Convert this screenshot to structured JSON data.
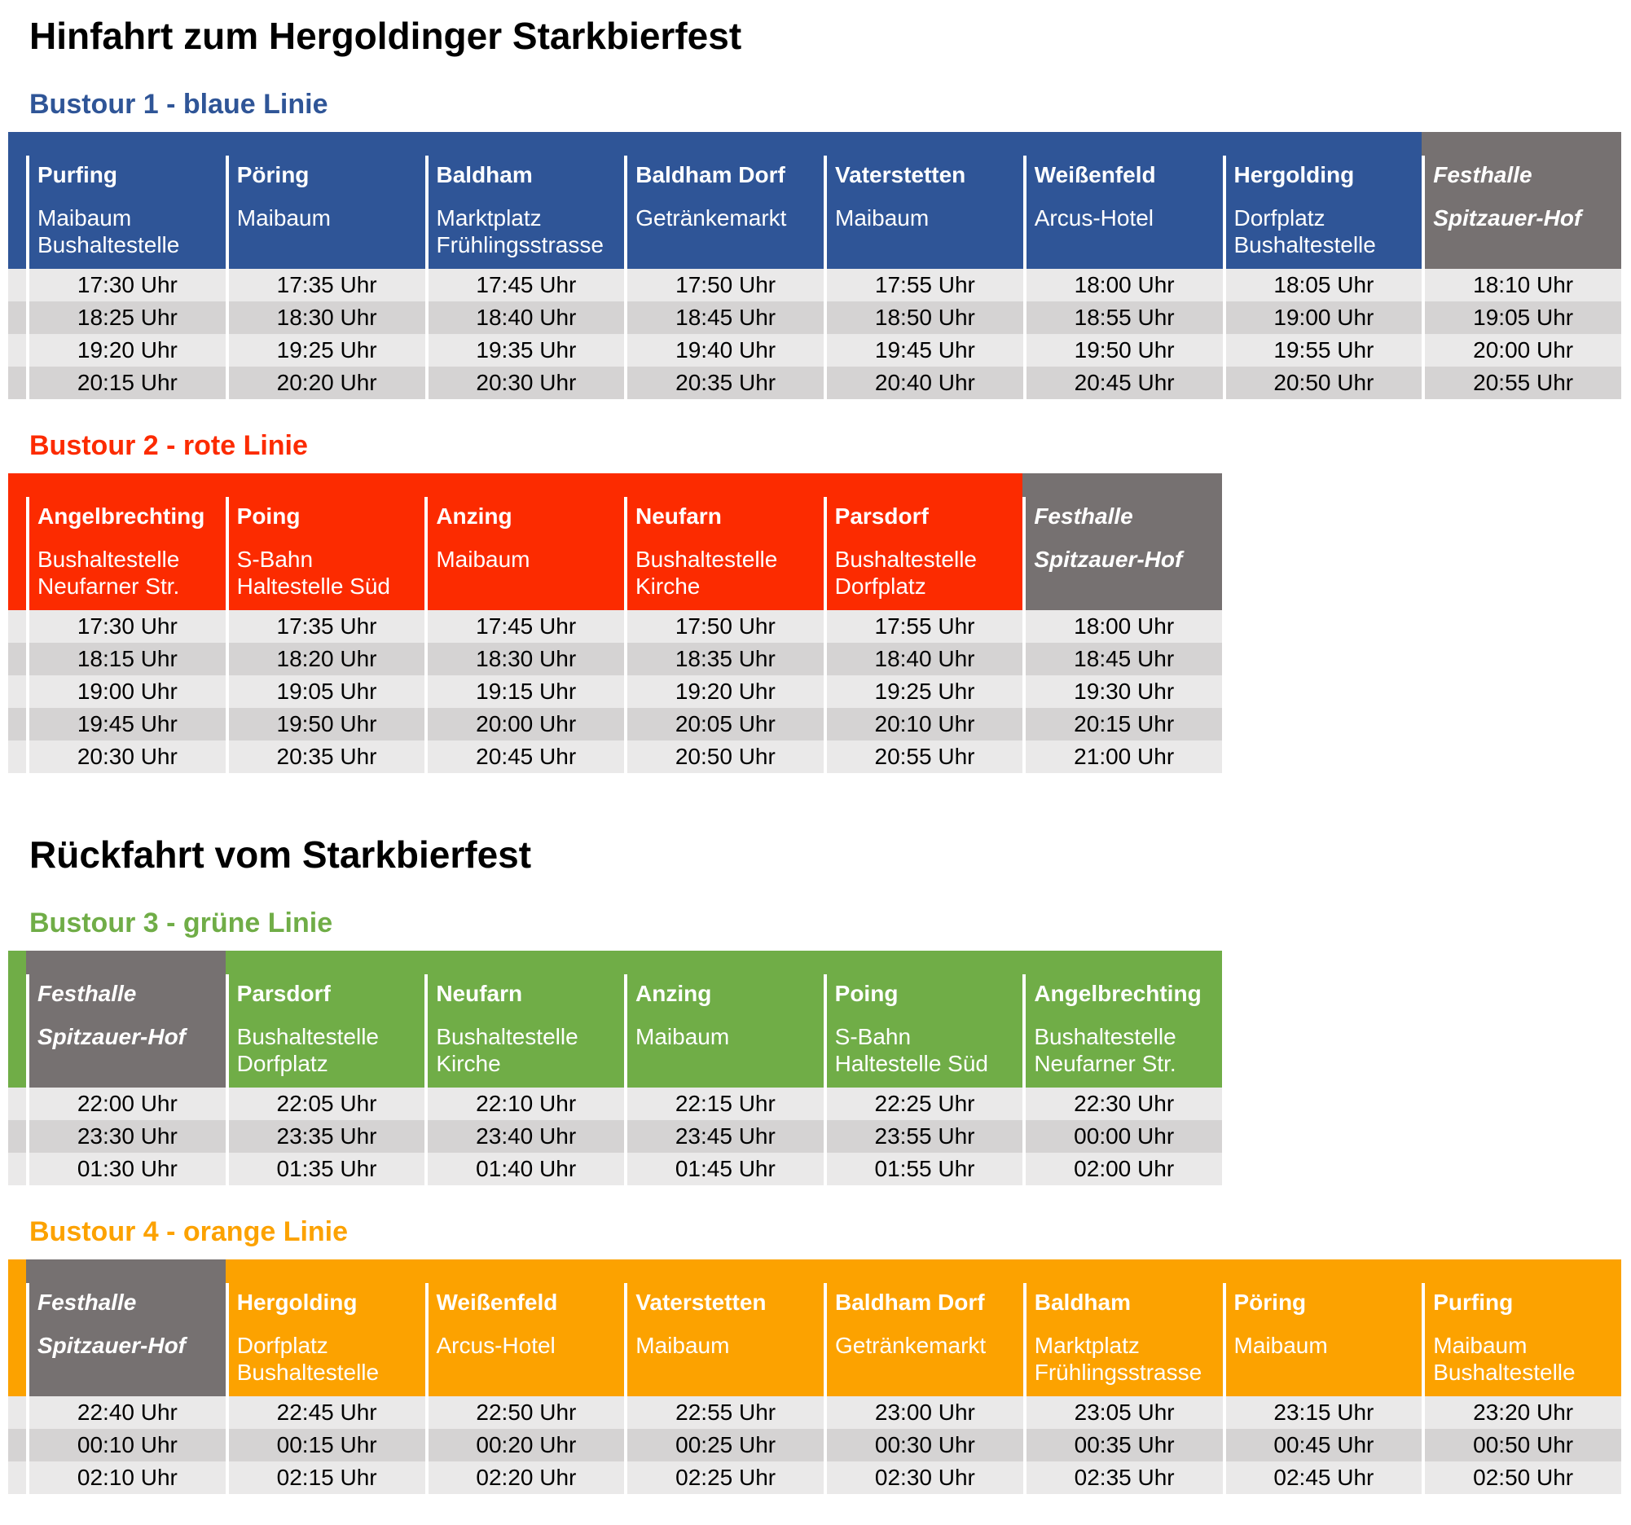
{
  "headings": {
    "outbound": "Hinfahrt zum Hergoldinger Starkbierfest",
    "return": "Rückfahrt vom Starkbierfest"
  },
  "colors": {
    "blue": "#2F5597",
    "red": "#FC2B00",
    "green": "#70AD47",
    "orange": "#FCA200",
    "festhalle_gray": "#767171",
    "row_light": "#EAE9E9",
    "row_dark": "#D5D3D3"
  },
  "tours": [
    {
      "title": "Bustour 1 - blaue Linie",
      "color_key": "blue",
      "section": "outbound",
      "wide": true,
      "stops": [
        {
          "name": "Purfing",
          "detail": [
            "Maibaum",
            "Bushaltestelle"
          ],
          "highlight": false
        },
        {
          "name": "Pöring",
          "detail": [
            "Maibaum"
          ],
          "highlight": false
        },
        {
          "name": "Baldham",
          "detail": [
            "Marktplatz",
            "Frühlingsstrasse"
          ],
          "highlight": false
        },
        {
          "name": "Baldham Dorf",
          "detail": [
            "Getränkemarkt"
          ],
          "highlight": false
        },
        {
          "name": "Vaterstetten",
          "detail": [
            "Maibaum"
          ],
          "highlight": false
        },
        {
          "name": "Weißenfeld",
          "detail": [
            "Arcus-Hotel"
          ],
          "highlight": false
        },
        {
          "name": "Hergolding",
          "detail": [
            "Dorfplatz",
            "Bushaltestelle"
          ],
          "highlight": false
        },
        {
          "name": "Festhalle",
          "detail": [
            "Spitzauer-Hof"
          ],
          "highlight": true
        }
      ],
      "departures": [
        [
          "17:30 Uhr",
          "17:35 Uhr",
          "17:45 Uhr",
          "17:50 Uhr",
          "17:55 Uhr",
          "18:00 Uhr",
          "18:05 Uhr",
          "18:10 Uhr"
        ],
        [
          "18:25 Uhr",
          "18:30 Uhr",
          "18:40 Uhr",
          "18:45 Uhr",
          "18:50 Uhr",
          "18:55 Uhr",
          "19:00 Uhr",
          "19:05 Uhr"
        ],
        [
          "19:20 Uhr",
          "19:25 Uhr",
          "19:35 Uhr",
          "19:40 Uhr",
          "19:45 Uhr",
          "19:50 Uhr",
          "19:55 Uhr",
          "20:00 Uhr"
        ],
        [
          "20:15 Uhr",
          "20:20 Uhr",
          "20:30 Uhr",
          "20:35 Uhr",
          "20:40 Uhr",
          "20:45 Uhr",
          "20:50 Uhr",
          "20:55 Uhr"
        ]
      ]
    },
    {
      "title": "Bustour 2 - rote Linie",
      "color_key": "red",
      "section": "outbound",
      "wide": false,
      "stops": [
        {
          "name": "Angelbrechting",
          "detail": [
            "Bushaltestelle",
            "Neufarner Str."
          ],
          "highlight": false
        },
        {
          "name": "Poing",
          "detail": [
            "S-Bahn",
            "Haltestelle Süd"
          ],
          "highlight": false
        },
        {
          "name": "Anzing",
          "detail": [
            "Maibaum"
          ],
          "highlight": false
        },
        {
          "name": "Neufarn",
          "detail": [
            "Bushaltestelle",
            "Kirche"
          ],
          "highlight": false
        },
        {
          "name": "Parsdorf",
          "detail": [
            "Bushaltestelle",
            "Dorfplatz"
          ],
          "highlight": false
        },
        {
          "name": "Festhalle",
          "detail": [
            "Spitzauer-Hof"
          ],
          "highlight": true
        }
      ],
      "departures": [
        [
          "17:30 Uhr",
          "17:35 Uhr",
          "17:45 Uhr",
          "17:50 Uhr",
          "17:55 Uhr",
          "18:00 Uhr"
        ],
        [
          "18:15 Uhr",
          "18:20 Uhr",
          "18:30 Uhr",
          "18:35 Uhr",
          "18:40 Uhr",
          "18:45 Uhr"
        ],
        [
          "19:00 Uhr",
          "19:05 Uhr",
          "19:15 Uhr",
          "19:20 Uhr",
          "19:25 Uhr",
          "19:30 Uhr"
        ],
        [
          "19:45 Uhr",
          "19:50 Uhr",
          "20:00 Uhr",
          "20:05 Uhr",
          "20:10 Uhr",
          "20:15 Uhr"
        ],
        [
          "20:30 Uhr",
          "20:35 Uhr",
          "20:45 Uhr",
          "20:50 Uhr",
          "20:55 Uhr",
          "21:00 Uhr"
        ]
      ]
    },
    {
      "title": "Bustour 3 - grüne Linie",
      "color_key": "green",
      "section": "return",
      "wide": false,
      "stops": [
        {
          "name": "Festhalle",
          "detail": [
            "Spitzauer-Hof"
          ],
          "highlight": true
        },
        {
          "name": "Parsdorf",
          "detail": [
            "Bushaltestelle",
            "Dorfplatz"
          ],
          "highlight": false
        },
        {
          "name": "Neufarn",
          "detail": [
            "Bushaltestelle",
            "Kirche"
          ],
          "highlight": false
        },
        {
          "name": "Anzing",
          "detail": [
            "Maibaum"
          ],
          "highlight": false
        },
        {
          "name": "Poing",
          "detail": [
            "S-Bahn",
            "Haltestelle Süd"
          ],
          "highlight": false
        },
        {
          "name": "Angelbrechting",
          "detail": [
            "Bushaltestelle",
            "Neufarner Str."
          ],
          "highlight": false
        }
      ],
      "departures": [
        [
          "22:00 Uhr",
          "22:05 Uhr",
          "22:10 Uhr",
          "22:15 Uhr",
          "22:25 Uhr",
          "22:30 Uhr"
        ],
        [
          "23:30 Uhr",
          "23:35 Uhr",
          "23:40 Uhr",
          "23:45 Uhr",
          "23:55 Uhr",
          "00:00 Uhr"
        ],
        [
          "01:30 Uhr",
          "01:35 Uhr",
          "01:40 Uhr",
          "01:45 Uhr",
          "01:55 Uhr",
          "02:00 Uhr"
        ]
      ]
    },
    {
      "title": "Bustour 4 - orange Linie",
      "color_key": "orange",
      "section": "return",
      "wide": true,
      "stops": [
        {
          "name": "Festhalle",
          "detail": [
            "Spitzauer-Hof"
          ],
          "highlight": true
        },
        {
          "name": "Hergolding",
          "detail": [
            "Dorfplatz",
            "Bushaltestelle"
          ],
          "highlight": false
        },
        {
          "name": "Weißenfeld",
          "detail": [
            "Arcus-Hotel"
          ],
          "highlight": false
        },
        {
          "name": "Vaterstetten",
          "detail": [
            "Maibaum"
          ],
          "highlight": false
        },
        {
          "name": "Baldham Dorf",
          "detail": [
            "Getränkemarkt"
          ],
          "highlight": false
        },
        {
          "name": "Baldham",
          "detail": [
            "Marktplatz",
            "Frühlingsstrasse"
          ],
          "highlight": false
        },
        {
          "name": "Pöring",
          "detail": [
            "Maibaum"
          ],
          "highlight": false
        },
        {
          "name": "Purfing",
          "detail": [
            "Maibaum",
            "Bushaltestelle"
          ],
          "highlight": false
        }
      ],
      "departures": [
        [
          "22:40 Uhr",
          "22:45 Uhr",
          "22:50 Uhr",
          "22:55 Uhr",
          "23:00 Uhr",
          "23:05 Uhr",
          "23:15 Uhr",
          "23:20 Uhr"
        ],
        [
          "00:10 Uhr",
          "00:15 Uhr",
          "00:20 Uhr",
          "00:25 Uhr",
          "00:30 Uhr",
          "00:35 Uhr",
          "00:45 Uhr",
          "00:50 Uhr"
        ],
        [
          "02:10 Uhr",
          "02:15 Uhr",
          "02:20 Uhr",
          "02:25 Uhr",
          "02:30 Uhr",
          "02:35 Uhr",
          "02:45 Uhr",
          "02:50 Uhr"
        ]
      ]
    }
  ]
}
